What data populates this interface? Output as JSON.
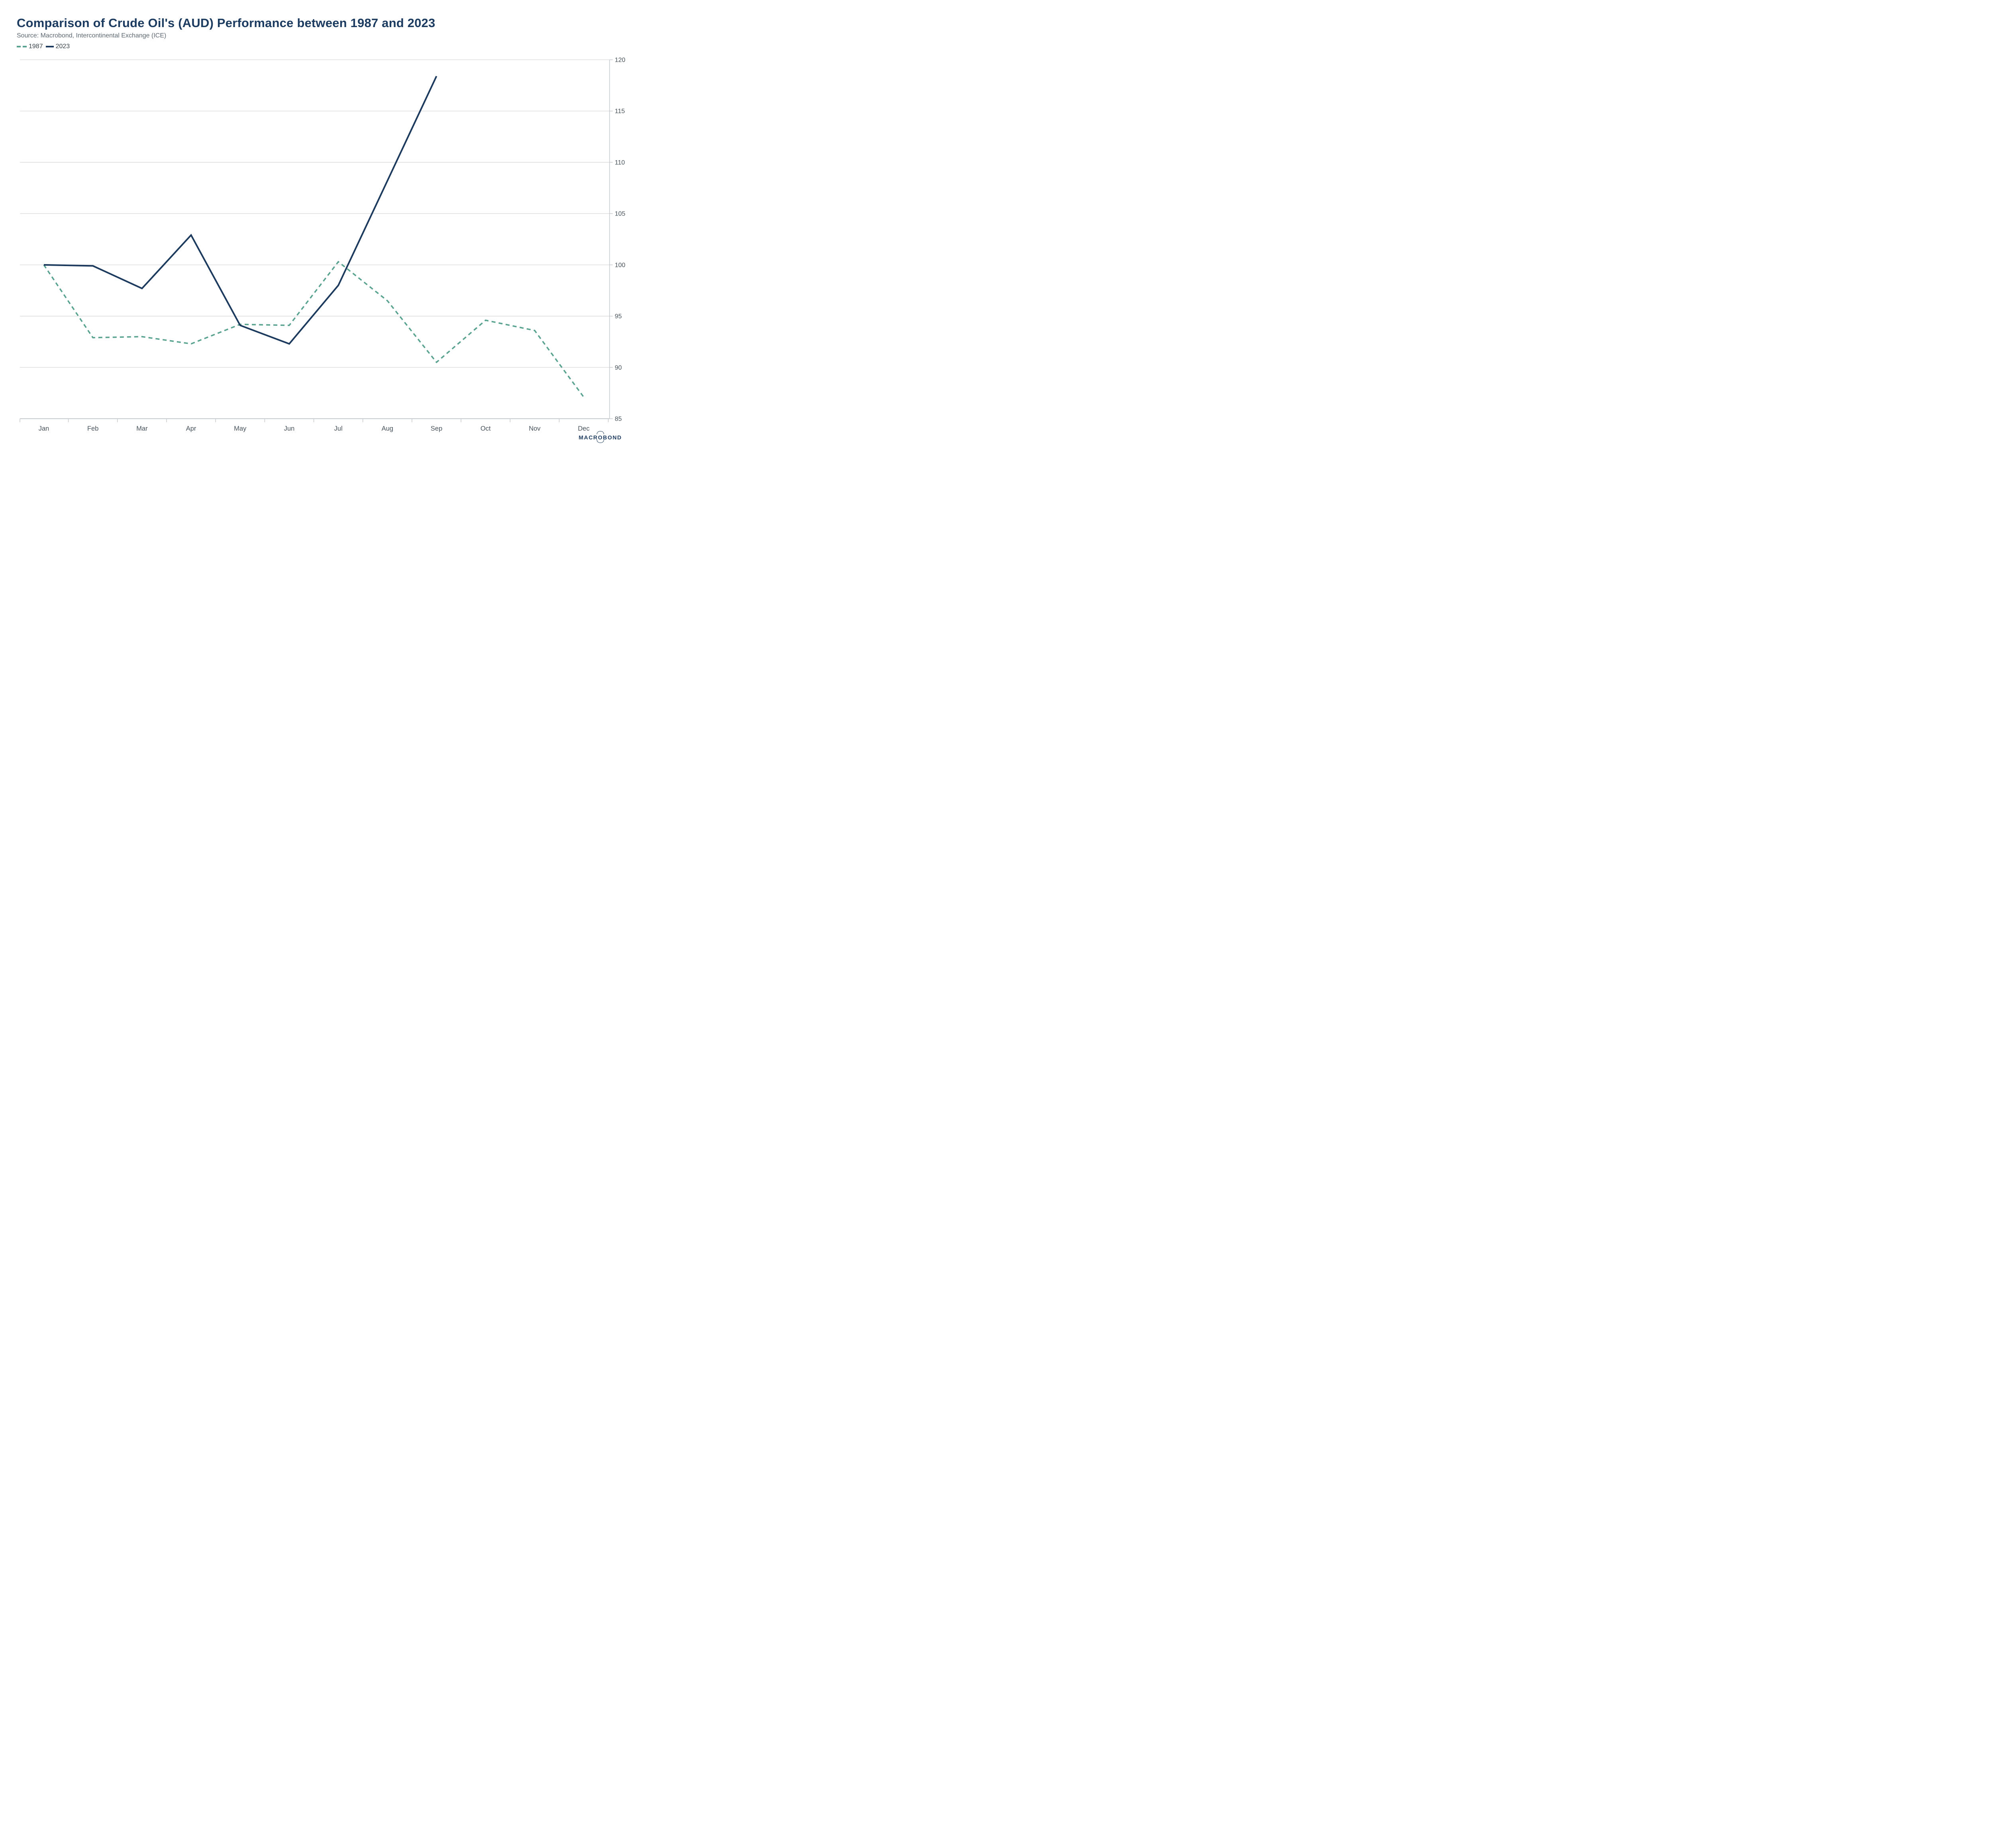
{
  "header": {
    "title": "Comparison of Crude Oil's (AUD) Performance between 1987 and 2023",
    "source": "Source: Macrobond, Intercontinental Exchange (ICE)"
  },
  "legend": {
    "items": [
      {
        "label": "1987",
        "color": "#58a390",
        "style": "dashed"
      },
      {
        "label": "2023",
        "color": "#1b3a5e",
        "style": "solid"
      }
    ]
  },
  "chart_data": {
    "type": "line",
    "title": "Comparison of Crude Oil's (AUD) Performance between 1987 and 2023",
    "categories": [
      "Jan",
      "Feb",
      "Mar",
      "Apr",
      "May",
      "Jun",
      "Jul",
      "Aug",
      "Sep",
      "Oct",
      "Nov",
      "Dec"
    ],
    "series": [
      {
        "name": "1987",
        "color": "#58a390",
        "dash": true,
        "values": [
          100,
          92.9,
          93.0,
          92.3,
          94.2,
          94.1,
          100.3,
          96.5,
          90.5,
          94.6,
          93.6,
          87.1
        ]
      },
      {
        "name": "2023",
        "color": "#1b3a5e",
        "dash": false,
        "values": [
          100,
          99.9,
          97.7,
          102.9,
          94.1,
          92.3,
          98.0,
          108.2,
          118.4
        ]
      }
    ],
    "ylim": [
      85,
      120
    ],
    "yticks": [
      85,
      90,
      95,
      100,
      105,
      110,
      115,
      120
    ],
    "xlabel": "",
    "ylabel": "",
    "grid": true,
    "y_axis_side": "right",
    "legend_position": "top-left"
  },
  "logo": {
    "pre": "MACR",
    "o": "O",
    "post": "BOND"
  },
  "colors": {
    "title": "#1c3b60",
    "source_text": "#5c6771",
    "axis_text": "#47525b",
    "gridline": "#d7d7d7",
    "axis_line": "#c6cbcf",
    "series_1987": "#58a390",
    "series_2023": "#1b3a5e"
  }
}
